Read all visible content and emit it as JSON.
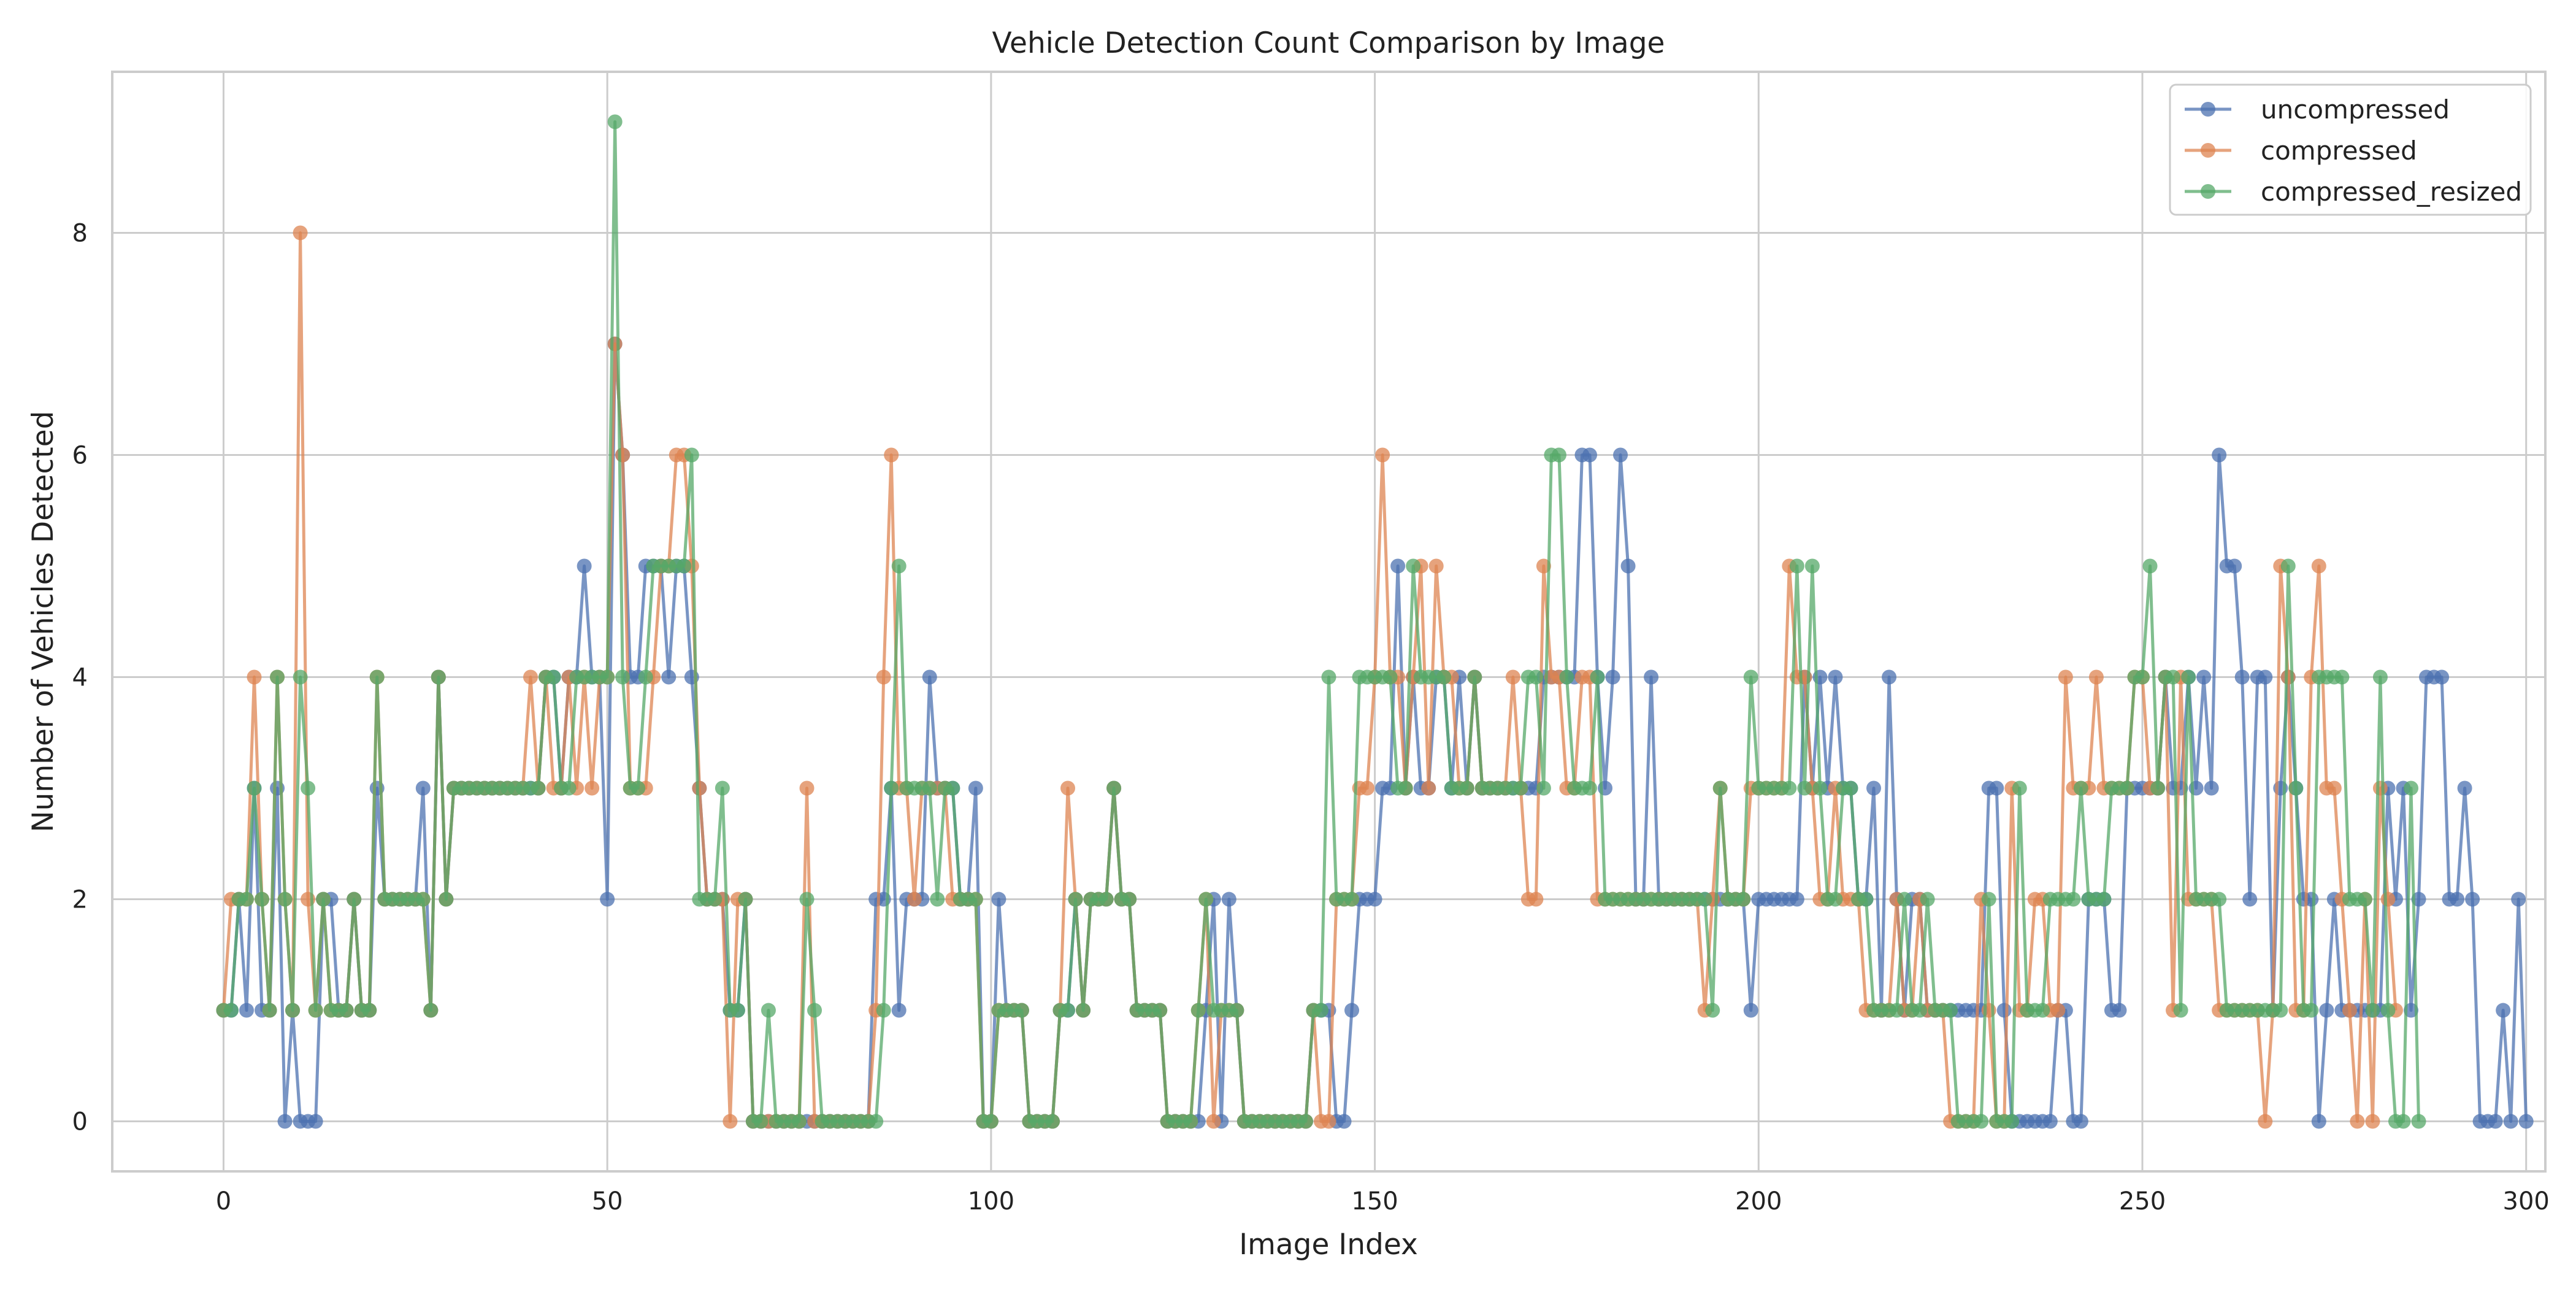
{
  "chart_data": {
    "type": "line",
    "title": "Vehicle Detection Count Comparison by Image",
    "xlabel": "Image Index",
    "ylabel": "Number of Vehicles Detected",
    "xlim": [
      -14.5,
      302.5
    ],
    "ylim": [
      -0.45,
      9.45
    ],
    "xticks": [
      0,
      50,
      100,
      150,
      200,
      250,
      300
    ],
    "yticks": [
      0,
      2,
      4,
      6,
      8
    ],
    "grid": true,
    "legend_position": "top-right",
    "series": [
      {
        "name": "uncompressed",
        "color": "#4c72b0",
        "values": [
          1,
          1,
          2,
          1,
          3,
          1,
          1,
          3,
          0,
          1,
          0,
          0,
          0,
          2,
          2,
          1,
          1,
          2,
          1,
          1,
          3,
          2,
          2,
          2,
          2,
          2,
          3,
          1,
          4,
          2,
          3,
          3,
          3,
          3,
          3,
          3,
          3,
          3,
          3,
          3,
          3,
          3,
          4,
          4,
          3,
          4,
          4,
          5,
          4,
          4,
          2,
          7,
          6,
          4,
          4,
          5,
          5,
          5,
          4,
          5,
          5,
          4,
          3,
          2,
          2,
          2,
          1,
          1,
          2,
          0,
          0,
          0,
          0,
          0,
          0,
          0,
          0,
          0,
          0,
          0,
          0,
          0,
          0,
          0,
          0,
          2,
          2,
          3,
          1,
          2,
          2,
          2,
          4,
          3,
          3,
          3,
          2,
          2,
          3,
          0,
          0,
          2,
          1,
          1,
          1,
          0,
          0,
          0,
          0,
          1,
          1,
          2,
          1,
          2,
          2,
          2,
          3,
          2,
          2,
          1,
          1,
          1,
          1,
          0,
          0,
          0,
          0,
          0,
          1,
          2,
          0,
          2,
          1,
          0,
          0,
          0,
          0,
          0,
          0,
          0,
          0,
          0,
          1,
          1,
          1,
          0,
          0,
          1,
          2,
          2,
          2,
          3,
          3,
          5,
          3,
          4,
          3,
          3,
          4,
          4,
          3,
          4,
          3,
          4,
          3,
          3,
          3,
          3,
          3,
          3,
          3,
          3,
          4,
          4,
          4,
          4,
          4,
          6,
          6,
          4,
          3,
          4,
          6,
          5,
          2,
          2,
          4,
          2,
          2,
          2,
          2,
          2,
          2,
          2,
          2,
          2,
          2,
          2,
          2,
          1,
          2,
          2,
          2,
          2,
          2,
          2,
          4,
          3,
          4,
          3,
          4,
          3,
          3,
          2,
          2,
          3,
          1,
          4,
          2,
          1,
          2,
          2,
          1,
          1,
          1,
          1,
          1,
          1,
          1,
          1,
          3,
          3,
          1,
          0,
          0,
          0,
          0,
          0,
          0,
          1,
          1,
          0,
          0,
          2,
          2,
          2,
          1,
          1,
          3,
          3,
          3,
          3,
          3,
          4,
          3,
          3,
          4,
          3,
          4,
          3,
          6,
          5,
          5,
          4,
          2,
          4,
          4,
          1,
          3,
          4,
          3,
          2,
          2,
          0,
          1,
          2,
          1,
          1,
          1,
          1,
          1,
          1,
          3,
          2,
          3,
          1,
          2,
          4,
          4,
          4,
          2,
          2,
          3,
          2,
          0,
          0,
          0,
          1,
          0,
          2,
          0
        ],
        "id": "uncompressed"
      },
      {
        "name": "compressed",
        "color": "#dd8452",
        "values": [
          1,
          2,
          2,
          2,
          4,
          2,
          1,
          4,
          2,
          1,
          8,
          2,
          1,
          2,
          1,
          1,
          1,
          2,
          1,
          1,
          4,
          2,
          2,
          2,
          2,
          2,
          2,
          1,
          4,
          2,
          3,
          3,
          3,
          3,
          3,
          3,
          3,
          3,
          3,
          3,
          4,
          3,
          4,
          3,
          3,
          4,
          3,
          4,
          3,
          4,
          4,
          7,
          6,
          3,
          3,
          3,
          4,
          5,
          5,
          6,
          6,
          5,
          3,
          2,
          2,
          2,
          0,
          2,
          2,
          0,
          0,
          0,
          0,
          0,
          0,
          0,
          3,
          0,
          0,
          0,
          0,
          0,
          0,
          0,
          0,
          1,
          4,
          6,
          3,
          3,
          2,
          3,
          3,
          3,
          3,
          2,
          2,
          2,
          2,
          0,
          0,
          1,
          1,
          1,
          1,
          0,
          0,
          0,
          0,
          1,
          3,
          2,
          1,
          2,
          2,
          2,
          3,
          2,
          2,
          1,
          1,
          1,
          1,
          0,
          0,
          0,
          0,
          1,
          2,
          0,
          1,
          1,
          1,
          0,
          0,
          0,
          0,
          0,
          0,
          0,
          0,
          0,
          1,
          0,
          0,
          2,
          2,
          2,
          3,
          3,
          4,
          6,
          4,
          4,
          3,
          4,
          5,
          3,
          5,
          4,
          4,
          3,
          3,
          4,
          3,
          3,
          3,
          3,
          4,
          3,
          2,
          2,
          5,
          4,
          4,
          3,
          3,
          4,
          4,
          2,
          2,
          2,
          2,
          2,
          2,
          2,
          2,
          2,
          2,
          2,
          2,
          2,
          2,
          1,
          2,
          3,
          2,
          2,
          2,
          3,
          3,
          3,
          3,
          3,
          5,
          4,
          4,
          3,
          2,
          2,
          3,
          2,
          2,
          2,
          1,
          1,
          1,
          1,
          2,
          1,
          1,
          2,
          1,
          1,
          1,
          0,
          0,
          0,
          0,
          2,
          1,
          0,
          0,
          3,
          1,
          1,
          2,
          2,
          1,
          1,
          4,
          3,
          3,
          3,
          4,
          3,
          3,
          3,
          3,
          4,
          4,
          3,
          3,
          4,
          1,
          4,
          2,
          2,
          2,
          2,
          1,
          1,
          1,
          1,
          1,
          1,
          0,
          1,
          5,
          4,
          1,
          1,
          4,
          5,
          3,
          3,
          2,
          1,
          0,
          2,
          0,
          3,
          2,
          1
        ],
        "id": "compressed"
      },
      {
        "name": "compressed_resized",
        "color": "#55a868",
        "values": [
          1,
          1,
          2,
          2,
          3,
          2,
          1,
          4,
          2,
          1,
          4,
          3,
          1,
          2,
          1,
          1,
          1,
          2,
          1,
          1,
          4,
          2,
          2,
          2,
          2,
          2,
          2,
          1,
          4,
          2,
          3,
          3,
          3,
          3,
          3,
          3,
          3,
          3,
          3,
          3,
          3,
          3,
          4,
          4,
          3,
          3,
          4,
          4,
          4,
          4,
          4,
          9,
          4,
          3,
          3,
          4,
          5,
          5,
          5,
          5,
          5,
          6,
          2,
          2,
          2,
          3,
          1,
          1,
          2,
          0,
          0,
          1,
          0,
          0,
          0,
          0,
          2,
          1,
          0,
          0,
          0,
          0,
          0,
          0,
          0,
          0,
          1,
          3,
          5,
          3,
          3,
          3,
          3,
          2,
          3,
          3,
          2,
          2,
          2,
          0,
          0,
          1,
          1,
          1,
          1,
          0,
          0,
          0,
          0,
          1,
          1,
          2,
          1,
          2,
          2,
          2,
          3,
          2,
          2,
          1,
          1,
          1,
          1,
          0,
          0,
          0,
          0,
          1,
          2,
          1,
          1,
          1,
          1,
          0,
          0,
          0,
          0,
          0,
          0,
          0,
          0,
          0,
          1,
          1,
          4,
          2,
          2,
          2,
          4,
          4,
          4,
          4,
          4,
          3,
          3,
          5,
          4,
          4,
          4,
          4,
          3,
          3,
          3,
          4,
          3,
          3,
          3,
          3,
          3,
          3,
          4,
          4,
          3,
          6,
          6,
          4,
          3,
          3,
          3,
          4,
          2,
          2,
          2,
          2,
          2,
          2,
          2,
          2,
          2,
          2,
          2,
          2,
          2,
          2,
          1,
          3,
          2,
          2,
          2,
          4,
          3,
          3,
          3,
          3,
          3,
          5,
          3,
          5,
          3,
          2,
          2,
          3,
          3,
          2,
          2,
          1,
          1,
          1,
          1,
          2,
          1,
          1,
          2,
          1,
          1,
          1,
          0,
          0,
          0,
          0,
          2,
          0,
          0,
          0,
          3,
          1,
          1,
          1,
          2,
          2,
          2,
          2,
          3,
          2,
          2,
          2,
          3,
          3,
          3,
          4,
          4,
          5,
          3,
          4,
          4,
          1,
          4,
          2,
          2,
          2,
          2,
          1,
          1,
          1,
          1,
          1,
          1,
          1,
          1,
          5,
          3,
          1,
          1,
          4,
          4,
          4,
          4,
          2,
          2,
          2,
          1,
          4,
          1,
          0,
          0,
          3,
          0
        ],
        "id": "compressed_resized"
      }
    ]
  }
}
